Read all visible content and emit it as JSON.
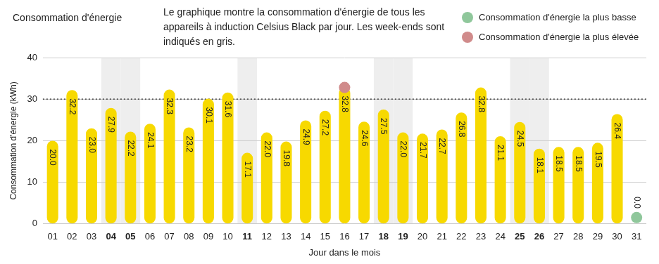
{
  "chart_data": {
    "type": "bar",
    "title": "Consommation d'énergie",
    "subtitle": "Le graphique montre la consommation d'énergie de tous les appareils à induction Celsius Black par jour. Les week-ends sont indiqués en gris.",
    "x_label": "Jour dans le mois",
    "y_label": "Consommation d'énergie (kWh)",
    "categories": [
      "01",
      "02",
      "03",
      "04",
      "05",
      "06",
      "07",
      "08",
      "09",
      "10",
      "11",
      "12",
      "13",
      "14",
      "15",
      "16",
      "17",
      "18",
      "19",
      "20",
      "21",
      "22",
      "23",
      "24",
      "25",
      "26",
      "27",
      "28",
      "29",
      "30",
      "31"
    ],
    "values": [
      20.0,
      32.2,
      23.0,
      27.9,
      22.2,
      24.1,
      32.3,
      23.2,
      30.1,
      31.6,
      17.1,
      22.0,
      19.8,
      24.9,
      27.2,
      32.8,
      24.6,
      27.5,
      22.0,
      21.7,
      22.7,
      26.8,
      32.8,
      21.1,
      24.5,
      18.1,
      18.5,
      18.5,
      19.5,
      26.4,
      0.0
    ],
    "value_labels": [
      "20.0",
      "32.2",
      "23.0",
      "27.9",
      "22.2",
      "24.1",
      "32.3",
      "23.2",
      "30.1",
      "31.6",
      "17.1",
      "22.0",
      "19.8",
      "24.9",
      "27.2",
      "32.8",
      "24.6",
      "27.5",
      "22.0",
      "21.7",
      "22.7",
      "26.8",
      "32.8",
      "21.1",
      "24.5",
      "18.1",
      "18.5",
      "18.5",
      "19.5",
      "26.4",
      "0.0"
    ],
    "color": "#f7d900",
    "weekends": [
      "04",
      "05",
      "11",
      "18",
      "19",
      "25",
      "26"
    ],
    "reference_line": 30,
    "markers": [
      {
        "name": "Consommation d'énergie la plus basse",
        "color": "#8fc79b",
        "category": "31"
      },
      {
        "name": "Consommation d'énergie la plus élevée",
        "color": "#d08b8b",
        "category": "16"
      }
    ],
    "ylim": [
      0,
      40
    ],
    "yticks": [
      0,
      10,
      20,
      30,
      40
    ],
    "grid": true,
    "data_labels": true
  }
}
